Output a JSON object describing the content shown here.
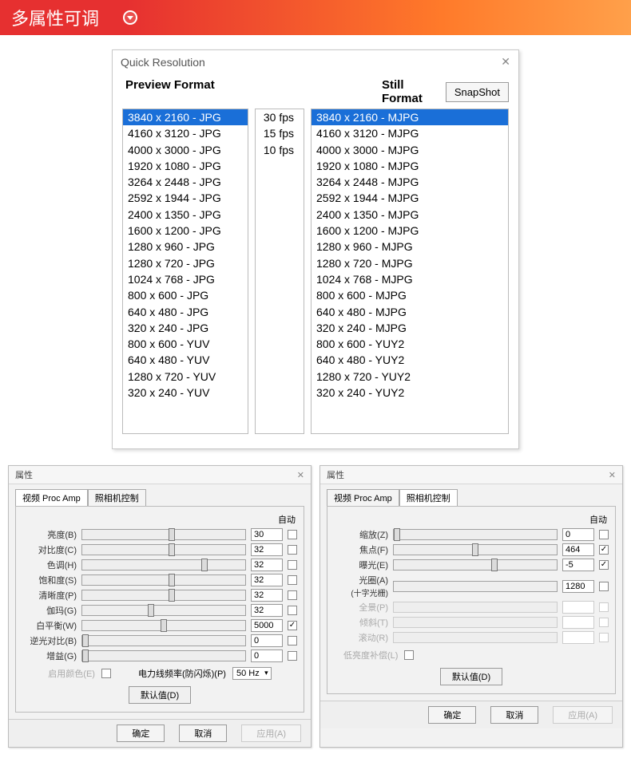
{
  "header": {
    "title": "多属性可调"
  },
  "qr": {
    "title": "Quick Resolution",
    "preview_label": "Preview Format",
    "still_label": "Still Format",
    "snapshot_label": "SnapShot",
    "preview_items": [
      "3840 x 2160 - JPG",
      "4160 x 3120 - JPG",
      "4000 x 3000 - JPG",
      "1920 x 1080 - JPG",
      "3264 x 2448 - JPG",
      "2592 x 1944 - JPG",
      "2400 x 1350 - JPG",
      "1600 x 1200 - JPG",
      "1280 x  960 - JPG",
      "1280 x  720 - JPG",
      "1024 x  768 - JPG",
      " 800 x  600 - JPG",
      " 640 x  480 - JPG",
      " 320 x  240 - JPG",
      " 800 x  600 - YUV",
      " 640 x  480 - YUV",
      "1280 x  720 - YUV",
      " 320 x  240 - YUV"
    ],
    "preview_selected": 0,
    "fps_items": [
      "30 fps",
      "15 fps",
      "10 fps"
    ],
    "still_items": [
      "3840 x 2160 - MJPG",
      "4160 x 3120 - MJPG",
      "4000 x 3000 - MJPG",
      "1920 x 1080 - MJPG",
      "3264 x 2448 - MJPG",
      "2592 x 1944 - MJPG",
      "2400 x 1350 - MJPG",
      "1600 x 1200 - MJPG",
      "1280 x 960 - MJPG",
      "1280 x 720 - MJPG",
      "1024 x 768 - MJPG",
      "800 x 600 - MJPG",
      "640 x 480 - MJPG",
      "320 x 240 - MJPG",
      "800 x 600 - YUY2",
      "640 x 480 - YUY2",
      "1280 x 720 - YUY2",
      "320 x 240 - YUY2"
    ],
    "still_selected": 0
  },
  "props_common": {
    "title": "属性",
    "tab1": "视频 Proc Amp",
    "tab2": "照相机控制",
    "auto_label": "自动",
    "defaults_btn": "默认值(D)",
    "ok": "确定",
    "cancel": "取消",
    "apply": "应用(A)"
  },
  "proc_amp": {
    "rows": [
      {
        "label": "亮度(B)",
        "value": "30",
        "pos": 55,
        "auto": false,
        "disabled": false
      },
      {
        "label": "对比度(C)",
        "value": "32",
        "pos": 55,
        "auto": false,
        "disabled": false
      },
      {
        "label": "色调(H)",
        "value": "32",
        "pos": 75,
        "auto": false,
        "disabled": false
      },
      {
        "label": "饱和度(S)",
        "value": "32",
        "pos": 55,
        "auto": false,
        "disabled": false
      },
      {
        "label": "清晰度(P)",
        "value": "32",
        "pos": 55,
        "auto": false,
        "disabled": false
      },
      {
        "label": "伽玛(G)",
        "value": "32",
        "pos": 42,
        "auto": false,
        "disabled": false
      },
      {
        "label": "白平衡(W)",
        "value": "5000",
        "pos": 50,
        "auto": true,
        "disabled": false
      },
      {
        "label": "逆光对比(B)",
        "value": "0",
        "pos": 2,
        "auto": false,
        "disabled": false
      },
      {
        "label": "增益(G)",
        "value": "0",
        "pos": 2,
        "auto": false,
        "disabled": false
      }
    ],
    "color_enable_label": "启用颜色(E)",
    "powerline_label": "电力线频率(防闪烁)(P)",
    "powerline_value": "50 Hz"
  },
  "cam_ctrl": {
    "rows": [
      {
        "label": "缩放(Z)",
        "value": "0",
        "pos": 2,
        "auto": false,
        "disabled": false
      },
      {
        "label": "焦点(F)",
        "value": "464",
        "pos": 50,
        "auto": true,
        "disabled": false
      },
      {
        "label": "曝光(E)",
        "value": "-5",
        "pos": 62,
        "auto": true,
        "disabled": false
      },
      {
        "label": "光圈(A)",
        "value": "1280",
        "pos": null,
        "auto": false,
        "disabled": false,
        "sublabel": "(十字光栅)"
      },
      {
        "label": "全景(P)",
        "value": "",
        "pos": null,
        "auto": false,
        "disabled": true
      },
      {
        "label": "倾斜(T)",
        "value": "",
        "pos": null,
        "auto": false,
        "disabled": true
      },
      {
        "label": "滚动(R)",
        "value": "",
        "pos": null,
        "auto": false,
        "disabled": true
      }
    ],
    "lowlight_label": "低亮度补偿(L)"
  }
}
